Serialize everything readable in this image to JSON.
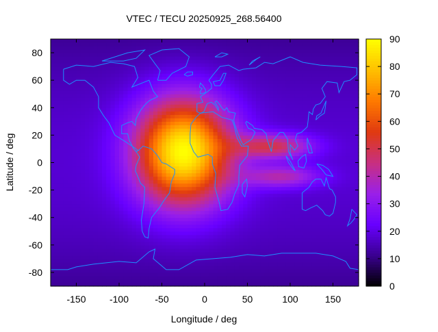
{
  "chart_data": {
    "type": "heatmap",
    "title": "VTEC / TECU 20250925_268.56400",
    "xlabel": "Longitude / deg",
    "ylabel": "Latitude / deg",
    "xlim": [
      -180,
      180
    ],
    "ylim": [
      -90,
      90
    ],
    "xticks": [
      -150,
      -100,
      -50,
      0,
      50,
      100,
      150
    ],
    "yticks": [
      -80,
      -60,
      -40,
      -20,
      0,
      20,
      40,
      60,
      80
    ],
    "colorbar": {
      "min": 0,
      "max": 90,
      "ticks": [
        0,
        10,
        20,
        30,
        40,
        50,
        60,
        70,
        80,
        90
      ]
    },
    "colormap": [
      "#000000",
      "#3a0090",
      "#6800ff",
      "#9a20e8",
      "#c83080",
      "#e03a10",
      "#ff7a00",
      "#ffc000",
      "#ffff00"
    ],
    "coastline_color": "#1e90ff",
    "grid_resolution_deg": {
      "lon": 5,
      "lat": 2.5
    },
    "peaks": [
      {
        "lon": -25,
        "lat": 8,
        "vtec": 90
      },
      {
        "lon": 80,
        "lat": 12,
        "vtec": 52
      },
      {
        "lon": 90,
        "lat": -10,
        "vtec": 45
      }
    ],
    "background_vtec": 18
  }
}
